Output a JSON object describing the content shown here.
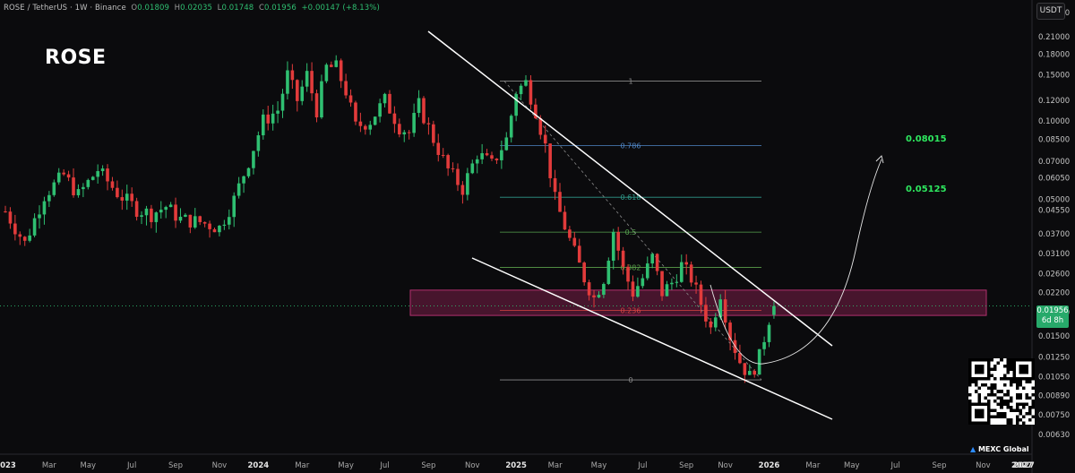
{
  "header": {
    "pair": "ROSE / TetherUS · 1W · Binance",
    "o_label": "O",
    "o_value": "0.01809",
    "h_label": "H",
    "h_value": "0.02035",
    "l_label": "L",
    "l_value": "0.01748",
    "c_label": "C",
    "c_value": "0.01956",
    "change": "+0.00147 (+8.13%)"
  },
  "symbol_title": "ROSE",
  "currency_button": "USDT",
  "current_price": {
    "value": "0.01956",
    "countdown": "6d 8h"
  },
  "targets": [
    "0.08015",
    "0.05125"
  ],
  "watermark": "MEXC Global",
  "colors": {
    "up": "#2fbf71",
    "down": "#e23b3b",
    "zone": "#7a1f48",
    "target": "#2ee85f",
    "background": "#0b0b0d"
  },
  "chart_data": {
    "type": "candlestick",
    "scale": "log",
    "ylim": [
      0.0053,
      0.29
    ],
    "yticks": [
      0.26,
      0.21,
      0.18,
      0.15,
      0.12,
      0.1,
      0.085,
      0.07,
      0.0605,
      0.05,
      0.0455,
      0.037,
      0.031,
      0.026,
      0.022,
      0.0185,
      0.015,
      0.0125,
      0.0105,
      0.0089,
      0.0075,
      0.0063
    ],
    "ytick_labels": [
      "0.26000",
      "0.21000",
      "0.18000",
      "0.15000",
      "0.12000",
      "0.10000",
      "0.08500",
      "0.07000",
      "0.06050",
      "0.05000",
      "0.04550",
      "0.03700",
      "0.03100",
      "0.02600",
      "0.02200",
      "0.01850",
      "0.01500",
      "0.01250",
      "0.01050",
      "0.00890",
      "0.00750",
      "0.00630"
    ],
    "xticks": [
      "2023",
      "Mar",
      "May",
      "Jul",
      "Sep",
      "Nov",
      "2024",
      "Mar",
      "May",
      "Jul",
      "Sep",
      "Nov",
      "2025",
      "Mar",
      "May",
      "Jul",
      "Sep",
      "Nov",
      "2026",
      "Mar",
      "May",
      "Jul",
      "Sep",
      "Nov",
      "2027"
    ],
    "xtick_weeks": [
      0,
      9,
      17,
      26,
      35,
      44,
      52,
      61,
      70,
      78,
      87,
      96,
      105,
      113,
      122,
      131,
      140,
      148,
      157,
      166,
      174,
      183,
      192,
      201,
      209
    ],
    "anchors": [
      [
        0,
        0.045
      ],
      [
        4,
        0.034
      ],
      [
        8,
        0.052
      ],
      [
        12,
        0.062
      ],
      [
        15,
        0.052
      ],
      [
        19,
        0.065
      ],
      [
        23,
        0.053
      ],
      [
        27,
        0.046
      ],
      [
        30,
        0.044
      ],
      [
        33,
        0.047
      ],
      [
        36,
        0.042
      ],
      [
        40,
        0.041
      ],
      [
        44,
        0.039
      ],
      [
        47,
        0.05
      ],
      [
        50,
        0.07
      ],
      [
        53,
        0.1
      ],
      [
        56,
        0.11
      ],
      [
        58,
        0.15
      ],
      [
        60,
        0.12
      ],
      [
        62,
        0.15
      ],
      [
        64,
        0.11
      ],
      [
        66,
        0.16
      ],
      [
        68,
        0.16
      ],
      [
        70,
        0.13
      ],
      [
        72,
        0.095
      ],
      [
        75,
        0.1
      ],
      [
        78,
        0.12
      ],
      [
        81,
        0.095
      ],
      [
        83,
        0.09
      ],
      [
        85,
        0.115
      ],
      [
        88,
        0.085
      ],
      [
        91,
        0.065
      ],
      [
        94,
        0.055
      ],
      [
        97,
        0.075
      ],
      [
        100,
        0.068
      ],
      [
        103,
        0.085
      ],
      [
        105,
        0.13
      ],
      [
        107,
        0.14
      ],
      [
        109,
        0.11
      ],
      [
        111,
        0.08
      ],
      [
        113,
        0.05
      ],
      [
        116,
        0.035
      ],
      [
        119,
        0.025
      ],
      [
        121,
        0.021
      ],
      [
        123,
        0.025
      ],
      [
        125,
        0.038
      ],
      [
        127,
        0.027
      ],
      [
        129,
        0.022
      ],
      [
        131,
        0.025
      ],
      [
        133,
        0.03
      ],
      [
        135,
        0.022
      ],
      [
        137,
        0.024
      ],
      [
        139,
        0.028
      ],
      [
        141,
        0.025
      ],
      [
        143,
        0.02
      ],
      [
        145,
        0.016
      ],
      [
        147,
        0.022
      ],
      [
        149,
        0.015
      ],
      [
        151,
        0.012
      ],
      [
        153,
        0.0105
      ],
      [
        155,
        0.0125
      ],
      [
        157,
        0.0175
      ],
      [
        158,
        0.01956
      ]
    ],
    "fibonacci": [
      {
        "level": "1",
        "price": 0.142
      },
      {
        "level": "0.786",
        "price": 0.0805
      },
      {
        "level": "0.618",
        "price": 0.051
      },
      {
        "level": "0.5",
        "price": 0.0375
      },
      {
        "level": "0.382",
        "price": 0.0275
      },
      {
        "level": "0.236",
        "price": 0.0188
      },
      {
        "level": "0",
        "price": 0.0102
      }
    ],
    "zone": {
      "top": 0.0225,
      "bottom": 0.018
    },
    "targets": [
      0.08015,
      0.05125
    ]
  }
}
